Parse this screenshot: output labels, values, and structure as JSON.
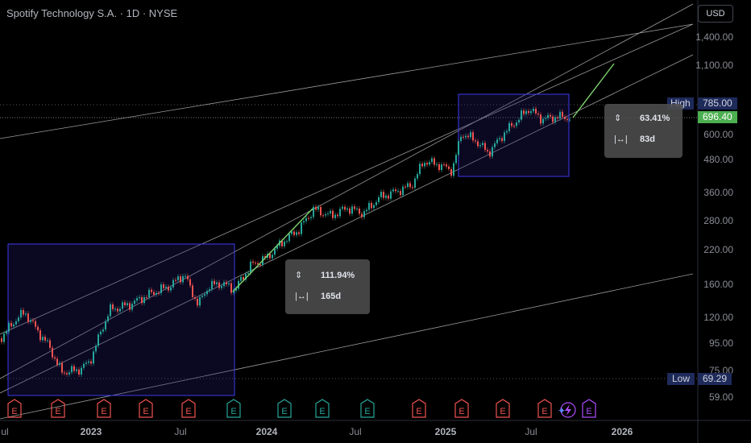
{
  "header": {
    "title": "Spotify Technology S.A. · 1D · NYSE",
    "currency_button": "USD"
  },
  "price_axis": {
    "labels": [
      "1,400.00",
      "1,100.00",
      "600.00",
      "480.00",
      "360.00",
      "280.00",
      "220.00",
      "160.00",
      "120.00",
      "95.00",
      "75.00",
      "59.00"
    ],
    "high_label": "High",
    "high_value": "785.00",
    "current_value": "696.40",
    "low_label": "Low",
    "low_value": "69.29"
  },
  "time_axis": {
    "labels": [
      "ul",
      "2023",
      "Jul",
      "2024",
      "Jul",
      "2025",
      "Jul",
      "2026"
    ]
  },
  "measure_boxes": [
    {
      "percent": "111.94%",
      "duration": "165d"
    },
    {
      "percent": "63.41%",
      "duration": "83d"
    }
  ],
  "earnings_marker_label": "E",
  "colors": {
    "background": "#000000",
    "up_candle": "#26a69a",
    "down_candle": "#ef5350",
    "rectangle": "#3d3af0",
    "projection_line": "#7ed36f",
    "current_price_tag": "#4caf50",
    "high_low_tag": "#1e2a5a",
    "earnings_red": "#ef5350",
    "earnings_green": "#26a69a",
    "dividend_purple": "#b14dff"
  },
  "icons": [
    "height-arrows-icon",
    "width-arrows-icon",
    "lightning-icon"
  ]
}
